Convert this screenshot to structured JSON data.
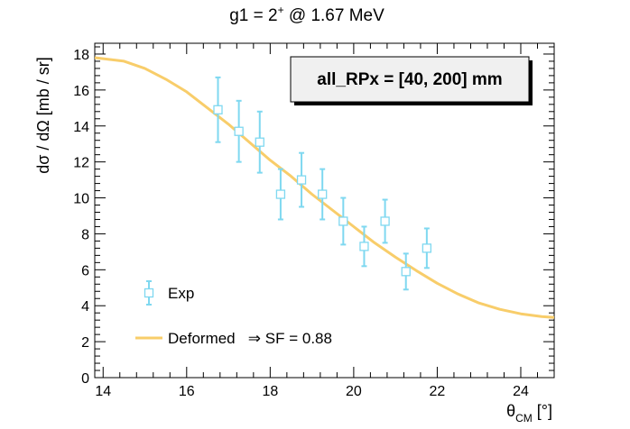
{
  "chart_data": {
    "type": "scatter",
    "title": {
      "main": "g1 = 2",
      "sup": "+",
      "rest": " @ 1.67 MeV"
    },
    "ylabel": "dσ / dΩ [mb / sr]",
    "xlabel": {
      "base": "θ",
      "sub": "CM",
      "unit": " [°]"
    },
    "xlim": [
      13.8,
      24.8
    ],
    "ylim": [
      0,
      18.6
    ],
    "xticks": [
      14,
      16,
      18,
      20,
      22,
      24
    ],
    "yticks": [
      0,
      2,
      4,
      6,
      8,
      10,
      12,
      14,
      16,
      18
    ],
    "xtick_labels": [
      "14",
      "16",
      "18",
      "20",
      "22",
      "24"
    ],
    "ytick_labels": [
      "0",
      "2",
      "4",
      "6",
      "8",
      "10",
      "12",
      "14",
      "16",
      "18"
    ],
    "grid": false,
    "annotation": "all_RPx = [40, 200] mm",
    "legend": {
      "placement": "bottom-left",
      "entries": [
        "Exp",
        "Deformed   ⇒ SF = 0.88"
      ]
    },
    "series": [
      {
        "name": "Exp",
        "kind": "points",
        "color": "#7fd8f0",
        "marker": "open-square",
        "x": [
          16.75,
          17.25,
          17.75,
          18.25,
          18.75,
          19.25,
          19.75,
          20.25,
          20.75,
          21.25,
          21.75
        ],
        "y": [
          14.9,
          13.7,
          13.1,
          10.2,
          11.0,
          10.2,
          8.7,
          7.3,
          8.7,
          5.9,
          7.2
        ],
        "yerr": [
          1.8,
          1.7,
          1.7,
          1.4,
          1.5,
          1.4,
          1.3,
          1.1,
          1.2,
          1.0,
          1.1
        ]
      },
      {
        "name": "Deformed   ⇒ SF = 0.88",
        "kind": "line",
        "color": "#f8cd6a",
        "x": [
          13.8,
          14.5,
          15.0,
          15.5,
          16.0,
          16.5,
          17.0,
          17.5,
          18.0,
          18.5,
          19.0,
          19.5,
          20.0,
          20.5,
          21.0,
          21.5,
          22.0,
          22.5,
          23.0,
          23.5,
          24.0,
          24.5,
          24.8
        ],
        "y": [
          17.8,
          17.6,
          17.2,
          16.6,
          15.9,
          15.0,
          14.1,
          13.1,
          12.1,
          11.2,
          10.2,
          9.3,
          8.4,
          7.5,
          6.7,
          5.95,
          5.25,
          4.65,
          4.15,
          3.8,
          3.55,
          3.4,
          3.35
        ]
      }
    ]
  }
}
